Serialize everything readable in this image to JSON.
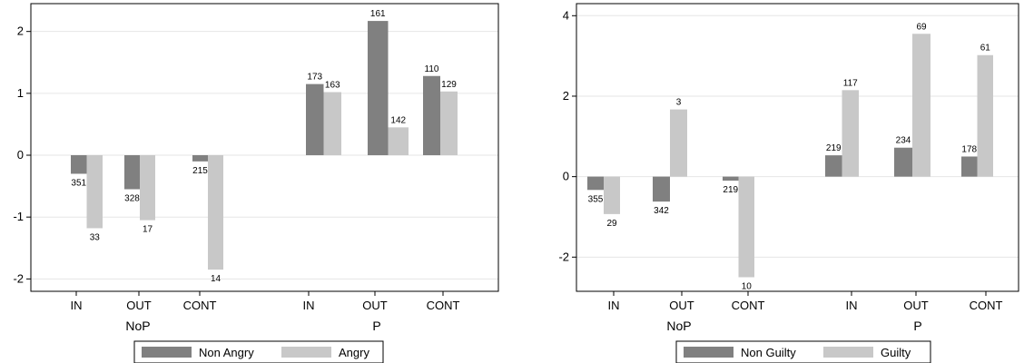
{
  "chart_data": [
    {
      "type": "bar",
      "categories": [
        "IN",
        "OUT",
        "CONT",
        "IN",
        "OUT",
        "CONT"
      ],
      "groups": [
        {
          "label": "NoP",
          "categories": [
            "IN",
            "OUT",
            "CONT"
          ]
        },
        {
          "label": "P",
          "categories": [
            "IN",
            "OUT",
            "CONT"
          ]
        }
      ],
      "series": [
        {
          "name": "Non Angry",
          "color": "#808080",
          "values": [
            -0.3,
            -0.55,
            -0.1,
            1.15,
            2.17,
            1.28
          ],
          "labels": [
            "351",
            "328",
            "215",
            "173",
            "161",
            "110"
          ]
        },
        {
          "name": "Angry",
          "color": "#c8c8c8",
          "values": [
            -1.18,
            -1.05,
            -1.85,
            1.02,
            0.45,
            1.03
          ],
          "labels": [
            "33",
            "17",
            "14",
            "163",
            "142",
            "129"
          ]
        }
      ],
      "ylim": [
        -2.2,
        2.45
      ],
      "yticks": [
        -2,
        -1,
        0,
        1,
        2
      ],
      "grid": true,
      "legend": "bottom"
    },
    {
      "type": "bar",
      "categories": [
        "IN",
        "OUT",
        "CONT",
        "IN",
        "OUT",
        "CONT"
      ],
      "groups": [
        {
          "label": "NoP",
          "categories": [
            "IN",
            "OUT",
            "CONT"
          ]
        },
        {
          "label": "P",
          "categories": [
            "IN",
            "OUT",
            "CONT"
          ]
        }
      ],
      "series": [
        {
          "name": "Non Guilty",
          "color": "#808080",
          "values": [
            -0.33,
            -0.62,
            -0.1,
            0.53,
            0.72,
            0.5
          ],
          "labels": [
            "355",
            "342",
            "219",
            "219",
            "234",
            "178"
          ]
        },
        {
          "name": "Guilty",
          "color": "#c8c8c8",
          "values": [
            -0.93,
            1.67,
            -2.5,
            2.15,
            3.55,
            3.02
          ],
          "labels": [
            "29",
            "3",
            "10",
            "117",
            "69",
            "61"
          ]
        }
      ],
      "ylim": [
        -2.85,
        4.3
      ],
      "yticks": [
        -2,
        0,
        2,
        4
      ],
      "grid": true,
      "legend": "bottom"
    }
  ]
}
